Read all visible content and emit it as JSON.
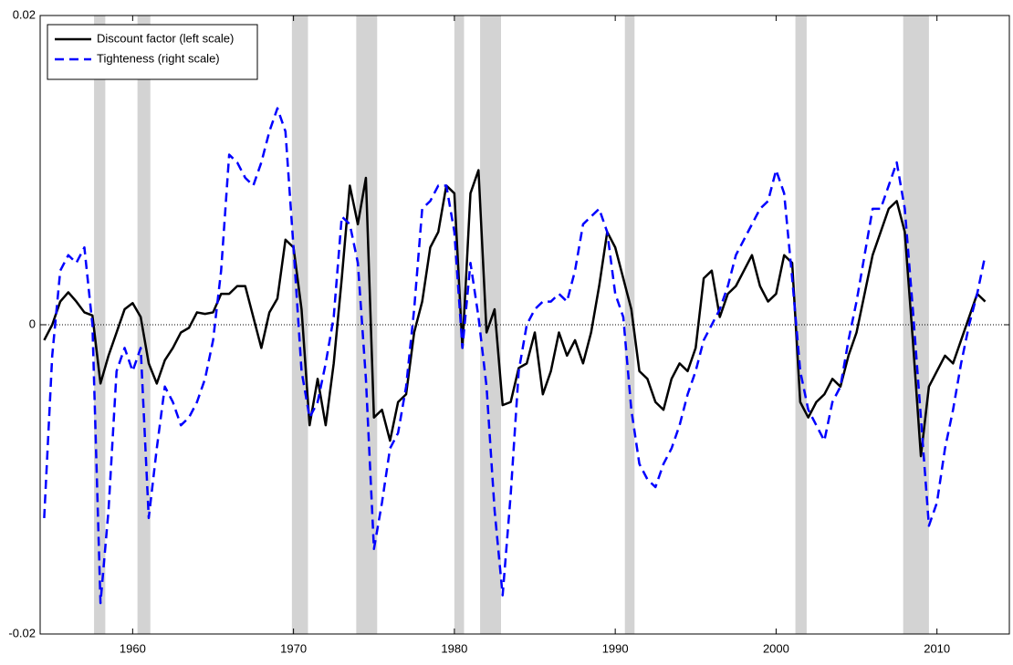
{
  "chart_data": {
    "type": "line",
    "x": [
      1954.5,
      1955,
      1955.5,
      1956,
      1956.5,
      1957,
      1957.5,
      1958,
      1958.5,
      1959,
      1959.5,
      1960,
      1960.5,
      1961,
      1961.5,
      1962,
      1962.5,
      1963,
      1963.5,
      1964,
      1964.5,
      1965,
      1965.5,
      1966,
      1966.5,
      1967,
      1967.5,
      1968,
      1968.5,
      1969,
      1969.5,
      1970,
      1970.5,
      1971,
      1971.5,
      1972,
      1972.5,
      1973,
      1973.5,
      1974,
      1974.5,
      1975,
      1975.5,
      1976,
      1976.5,
      1977,
      1977.5,
      1978,
      1978.5,
      1979,
      1979.5,
      1980,
      1980.5,
      1981,
      1981.5,
      1982,
      1982.5,
      1983,
      1983.5,
      1984,
      1984.5,
      1985,
      1985.5,
      1986,
      1986.5,
      1987,
      1987.5,
      1988,
      1988.5,
      1989,
      1989.5,
      1990,
      1990.5,
      1991,
      1991.5,
      1992,
      1992.5,
      1993,
      1993.5,
      1994,
      1994.5,
      1995,
      1995.5,
      1996,
      1996.5,
      1997,
      1997.5,
      1998,
      1998.5,
      1999,
      1999.5,
      2000,
      2000.5,
      2001,
      2001.5,
      2002,
      2002.5,
      2003,
      2003.5,
      2004,
      2004.5,
      2005,
      2005.5,
      2006,
      2006.5,
      2007,
      2007.5,
      2008,
      2008.5,
      2009,
      2009.5,
      2010,
      2010.5,
      2011,
      2011.5,
      2012,
      2012.5,
      2013
    ],
    "series": [
      {
        "name": "Discount factor (left scale)",
        "color": "#000000",
        "dash": false,
        "values": [
          -0.001,
          0,
          0.0015,
          0.0021,
          0.0015,
          0.0008,
          0.0006,
          -0.0038,
          -0.002,
          -0.0005,
          0.001,
          0.0014,
          0.0005,
          -0.0025,
          -0.0038,
          -0.0023,
          -0.0015,
          -0.0005,
          -0.0002,
          0.0008,
          0.0007,
          0.0008,
          0.002,
          0.002,
          0.0025,
          0.0025,
          0.0005,
          -0.0015,
          0.0008,
          0.0017,
          0.0055,
          0.005,
          0.001,
          -0.0065,
          -0.0035,
          -0.0065,
          -0.0025,
          0.003,
          0.009,
          0.0065,
          0.0095,
          -0.006,
          -0.0055,
          -0.0075,
          -0.005,
          -0.0045,
          -0.0005,
          0.0015,
          0.005,
          0.006,
          0.009,
          0.0085,
          -0.0015,
          0.0085,
          0.01,
          -0.0005,
          0.001,
          -0.0052,
          -0.005,
          -0.0028,
          -0.0025,
          -0.0005,
          -0.0045,
          -0.003,
          -0.0005,
          -0.002,
          -0.001,
          -0.0025,
          -0.0005,
          0.0025,
          0.006,
          0.005,
          0.003,
          0.001,
          -0.003,
          -0.0035,
          -0.005,
          -0.0055,
          -0.0035,
          -0.0025,
          -0.003,
          -0.0015,
          0.003,
          0.0035,
          0.0005,
          0.002,
          0.0025,
          0.0035,
          0.0045,
          0.0025,
          0.0015,
          0.002,
          0.0045,
          0.004,
          -0.005,
          -0.006,
          -0.005,
          -0.0045,
          -0.0035,
          -0.004,
          -0.002,
          -0.0005,
          0.002,
          0.0045,
          0.006,
          0.0075,
          0.008,
          0.006,
          -0.001,
          -0.0085,
          -0.004,
          -0.003,
          -0.002,
          -0.0025,
          -0.001,
          0.0005,
          0.002,
          0.0015
        ]
      },
      {
        "name": "Tighteness (right scale)",
        "color": "#0000ff",
        "dash": true,
        "values": [
          -0.0125,
          -0.002,
          0.0035,
          0.0045,
          0.004,
          0.005,
          0,
          -0.018,
          -0.012,
          -0.003,
          -0.0015,
          -0.003,
          -0.0015,
          -0.0125,
          -0.008,
          -0.004,
          -0.005,
          -0.0065,
          -0.006,
          -0.005,
          -0.0035,
          -0.001,
          0.0035,
          0.011,
          0.0105,
          0.0095,
          0.009,
          0.0105,
          0.0125,
          0.014,
          0.0125,
          0.005,
          -0.003,
          -0.006,
          -0.005,
          -0.0025,
          0.0005,
          0.007,
          0.0065,
          0.004,
          -0.0035,
          -0.0145,
          -0.0115,
          -0.008,
          -0.007,
          -0.004,
          0.001,
          0.0075,
          0.008,
          0.009,
          0.009,
          0.006,
          -0.0015,
          0.004,
          0.0005,
          -0.004,
          -0.012,
          -0.0175,
          -0.011,
          -0.003,
          0,
          0.001,
          0.0015,
          0.0015,
          0.002,
          0.0015,
          0.0035,
          0.0065,
          0.007,
          0.0075,
          0.006,
          0.002,
          0.0005,
          -0.0055,
          -0.009,
          -0.01,
          -0.0105,
          -0.009,
          -0.008,
          -0.0065,
          -0.0045,
          -0.003,
          -0.001,
          0,
          0.001,
          0.0025,
          0.0045,
          0.0055,
          0.0065,
          0.0075,
          0.008,
          0.01,
          0.0085,
          0.003,
          -0.003,
          -0.0055,
          -0.0065,
          -0.0075,
          -0.005,
          -0.004,
          -0.001,
          0.0015,
          0.0045,
          0.0075,
          0.0075,
          0.009,
          0.0105,
          0.0075,
          0.001,
          -0.006,
          -0.013,
          -0.0115,
          -0.008,
          -0.0055,
          -0.0025,
          0,
          0.002,
          0.0045
        ]
      }
    ],
    "shaded_regions": [
      [
        1957.6,
        1958.3
      ],
      [
        1960.3,
        1961.1
      ],
      [
        1969.9,
        1970.9
      ],
      [
        1973.9,
        1975.2
      ],
      [
        1980.0,
        1980.6
      ],
      [
        1981.6,
        1982.9
      ],
      [
        1990.6,
        1991.2
      ],
      [
        2001.2,
        2001.9
      ],
      [
        2007.9,
        2009.5
      ]
    ],
    "shade_color": "#d3d3d3",
    "reference_line": 0,
    "xlim": [
      1954.25,
      2014.5
    ],
    "xticks": [
      1960,
      1970,
      1980,
      1990,
      2000,
      2010
    ],
    "ylim": [
      -0.02,
      0.02
    ],
    "yticks": [
      -0.02,
      0,
      0.02
    ],
    "grid": false,
    "legend": "upper left"
  }
}
